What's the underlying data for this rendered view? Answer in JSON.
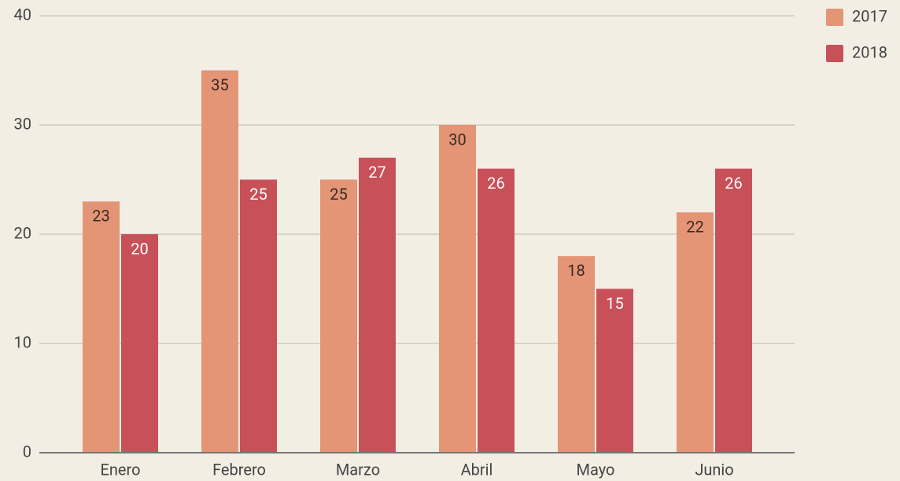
{
  "chart_data": {
    "type": "bar",
    "categories": [
      "Enero",
      "Febrero",
      "Marzo",
      "Abril",
      "Mayo",
      "Junio"
    ],
    "series": [
      {
        "name": "2017",
        "color": "#e39576",
        "values": [
          23,
          35,
          25,
          30,
          18,
          22
        ]
      },
      {
        "name": "2018",
        "color": "#c85058",
        "values": [
          20,
          25,
          27,
          26,
          15,
          26
        ]
      }
    ],
    "ylim": [
      0,
      40
    ],
    "yticks": [
      0,
      10,
      20,
      30,
      40
    ],
    "grid": true,
    "legend": "top-right"
  }
}
